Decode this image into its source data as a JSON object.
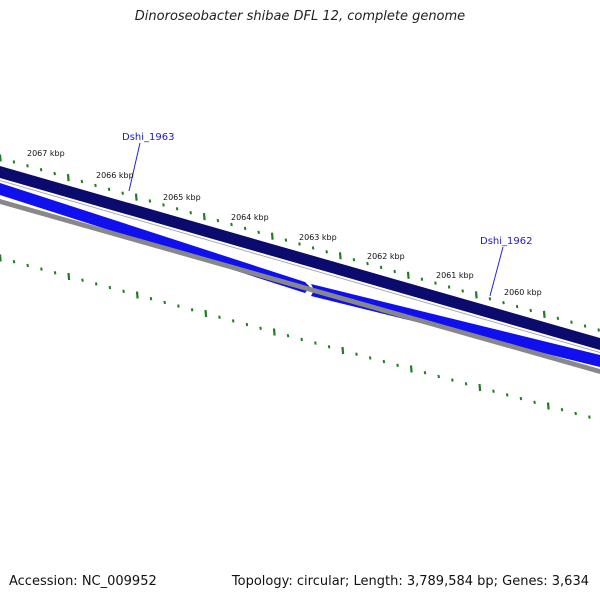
{
  "title": "Dinoroseobacter shibae DFL 12, complete genome",
  "footer": {
    "accession": "Accession: NC_009952",
    "stats": "Topology: circular; Length: 3,789,584 bp; Genes: 3,634"
  },
  "ruler": {
    "labels": [
      "2067 kbp",
      "2066 kbp",
      "2065 kbp",
      "2064 kbp",
      "2063 kbp",
      "2062 kbp",
      "2061 kbp",
      "2060 kbp"
    ]
  },
  "genes": [
    {
      "label": "Dshi_1963",
      "strand": "reverse"
    },
    {
      "label": "Dshi_1962",
      "strand": "reverse"
    }
  ],
  "colors": {
    "tick": "#1e7d1e",
    "cds_track": "#0b0b6e",
    "gene_arrow": "#1010ee",
    "backbone": "#888888",
    "gene_label": "#1a1acc",
    "gene_line": "#2222dd"
  }
}
